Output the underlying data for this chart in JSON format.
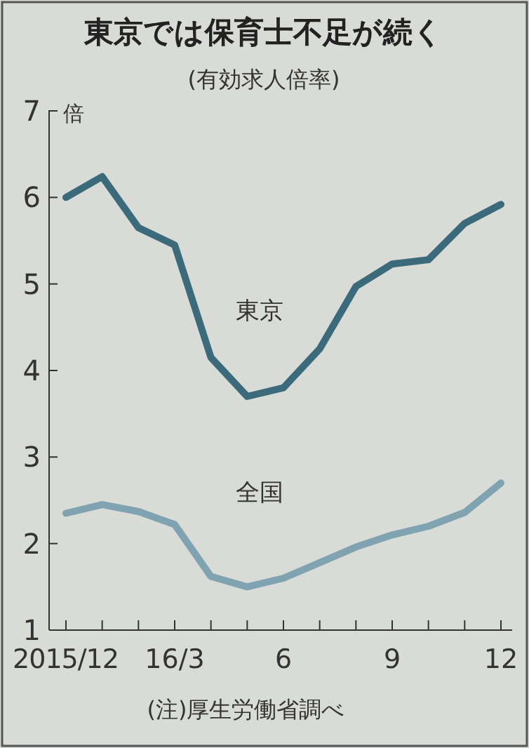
{
  "chart_data": {
    "type": "line",
    "title": "東京では保育士不足が続く",
    "subtitle": "(有効求人倍率)",
    "ylabel": "倍",
    "annotations": [
      "(注)厚生労働省調べ"
    ],
    "categories": [
      "2015/12",
      null,
      null,
      "16/3",
      null,
      null,
      "6",
      null,
      null,
      "9",
      null,
      null,
      "12"
    ],
    "series": [
      {
        "name": "東京",
        "color": "#3b6b7b",
        "values": [
          6.0,
          6.24,
          5.65,
          5.45,
          4.15,
          3.7,
          3.8,
          4.25,
          4.97,
          5.23,
          5.28,
          5.7,
          5.92
        ]
      },
      {
        "name": "全国",
        "color": "#80a3b1",
        "values": [
          2.35,
          2.45,
          2.37,
          2.22,
          1.62,
          1.5,
          1.6,
          1.78,
          1.96,
          2.1,
          2.2,
          2.36,
          2.7
        ]
      }
    ],
    "ylim": [
      1,
      7
    ],
    "yticks": [
      1,
      2,
      3,
      4,
      5,
      6,
      7
    ],
    "grid": false,
    "legend": false,
    "marker": "none",
    "line_style": "solid"
  }
}
